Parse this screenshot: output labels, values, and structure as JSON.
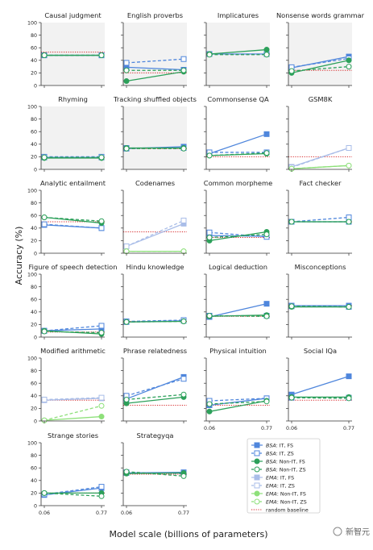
{
  "figure": {
    "ylabel": "Accuracy (%)",
    "xlabel": "Model scale (billions of parameters)",
    "watermark": "新智元"
  },
  "chart_data": {
    "type": "line",
    "x": [
      0.06,
      0.77
    ],
    "x_ticks": [
      "0.06",
      "0.77"
    ],
    "ylim": [
      0,
      100
    ],
    "y_ticks": [
      "0",
      "20",
      "40",
      "60",
      "80",
      "100"
    ],
    "grid": false,
    "series_styles": [
      {
        "key": "bsa_it_fs",
        "label": "BSA: IT, FS",
        "model": "BSA",
        "desc": ": IT, FS",
        "color": "#4f86dc",
        "marker": "square",
        "filled": true,
        "dashed": false
      },
      {
        "key": "bsa_it_zs",
        "label": "BSA: IT, ZS",
        "model": "BSA",
        "desc": ": IT, ZS",
        "color": "#4f86dc",
        "marker": "square",
        "filled": false,
        "dashed": true
      },
      {
        "key": "bsa_nonit_fs",
        "label": "BSA: Non-IT, FS",
        "model": "BSA",
        "desc": ": Non-IT, FS",
        "color": "#2ca05a",
        "marker": "circle",
        "filled": true,
        "dashed": false
      },
      {
        "key": "bsa_nonit_zs",
        "label": "BSA: Non-IT, ZS",
        "model": "BSA",
        "desc": ": Non-IT, ZS",
        "color": "#2ca05a",
        "marker": "circle",
        "filled": false,
        "dashed": true
      },
      {
        "key": "ema_it_fs",
        "label": "EMA: IT, FS",
        "model": "EMA",
        "desc": ": IT, FS",
        "color": "#a9bde8",
        "marker": "square",
        "filled": true,
        "dashed": false
      },
      {
        "key": "ema_it_zs",
        "label": "EMA: IT, ZS",
        "model": "EMA",
        "desc": ": IT, ZS",
        "color": "#a9bde8",
        "marker": "square",
        "filled": false,
        "dashed": true
      },
      {
        "key": "ema_nonit_fs",
        "label": "EMA: Non-IT, FS",
        "model": "EMA",
        "desc": ": Non-IT, FS",
        "color": "#8ee07a",
        "marker": "circle",
        "filled": true,
        "dashed": false
      },
      {
        "key": "ema_nonit_zs",
        "label": "EMA: Non-IT, ZS",
        "model": "EMA",
        "desc": ": Non-IT, ZS",
        "color": "#8ee07a",
        "marker": "circle",
        "filled": false,
        "dashed": true
      }
    ],
    "baseline": {
      "label": "random baseline",
      "color": "#d62728"
    },
    "panels": [
      {
        "title": "Causal judgment",
        "shaded": true,
        "baseline": 53,
        "series": {
          "bsa_it_fs": [
            48,
            48
          ],
          "bsa_it_zs": [
            48,
            48
          ],
          "bsa_nonit_fs": [
            48,
            48
          ],
          "bsa_nonit_zs": [
            48,
            48
          ]
        }
      },
      {
        "title": "English proverbs",
        "shaded": true,
        "baseline": 20,
        "series": {
          "bsa_it_fs": [
            29,
            25
          ],
          "bsa_it_zs": [
            36,
            42
          ],
          "bsa_nonit_fs": [
            7,
            22
          ],
          "bsa_nonit_zs": [
            24,
            24
          ]
        }
      },
      {
        "title": "Implicatures",
        "shaded": true,
        "baseline": 50,
        "series": {
          "bsa_it_fs": [
            50,
            50
          ],
          "bsa_it_zs": [
            50,
            50
          ],
          "bsa_nonit_fs": [
            50,
            57
          ],
          "bsa_nonit_zs": [
            49,
            49
          ]
        }
      },
      {
        "title": "Nonsense words grammar",
        "shaded": true,
        "baseline": 24,
        "series": {
          "bsa_it_fs": [
            28,
            46
          ],
          "bsa_it_zs": [
            29,
            43
          ],
          "bsa_nonit_fs": [
            20,
            40
          ],
          "bsa_nonit_zs": [
            23,
            30
          ]
        }
      },
      {
        "title": "Rhyming",
        "shaded": true,
        "baseline": 19,
        "series": {
          "bsa_it_fs": [
            19,
            19
          ],
          "bsa_it_zs": [
            20,
            20
          ],
          "bsa_nonit_fs": [
            18,
            18
          ],
          "bsa_nonit_zs": [
            19,
            19
          ]
        }
      },
      {
        "title": "Tracking shuffled objects",
        "shaded": true,
        "baseline": 33,
        "series": {
          "bsa_it_fs": [
            33,
            36
          ],
          "bsa_it_zs": [
            34,
            34
          ],
          "bsa_nonit_fs": [
            34,
            34
          ],
          "bsa_nonit_zs": [
            33,
            33
          ]
        }
      },
      {
        "title": "Commonsense QA",
        "shaded": false,
        "baseline": 20,
        "series": {
          "bsa_it_fs": [
            25,
            56
          ],
          "bsa_it_zs": [
            27,
            27
          ],
          "bsa_nonit_fs": [
            22,
            25
          ],
          "bsa_nonit_zs": [
            22,
            26
          ]
        }
      },
      {
        "title": "GSM8K",
        "shaded": false,
        "baseline": 20,
        "series": {
          "ema_it_fs": [
            4,
            34
          ],
          "ema_it_zs": [
            3,
            34
          ],
          "ema_nonit_fs": [
            1,
            6
          ],
          "ema_nonit_zs": [
            1,
            6
          ]
        }
      },
      {
        "title": "Analytic entailment",
        "shaded": false,
        "baseline": 50,
        "series": {
          "bsa_it_fs": [
            45,
            40
          ],
          "bsa_it_zs": [
            46,
            40
          ],
          "bsa_nonit_fs": [
            57,
            48
          ],
          "bsa_nonit_zs": [
            57,
            51
          ]
        }
      },
      {
        "title": "Codenames",
        "shaded": false,
        "baseline": 34,
        "series": {
          "ema_it_fs": [
            11,
            47
          ],
          "ema_it_zs": [
            11,
            52
          ],
          "ema_nonit_fs": [
            3,
            3
          ],
          "ema_nonit_zs": [
            3,
            3
          ]
        }
      },
      {
        "title": "Common morpheme",
        "shaded": false,
        "baseline": 25,
        "series": {
          "bsa_it_fs": [
            28,
            27
          ],
          "bsa_it_zs": [
            33,
            26
          ],
          "bsa_nonit_fs": [
            20,
            34
          ],
          "bsa_nonit_zs": [
            25,
            30
          ]
        }
      },
      {
        "title": "Fact checker",
        "shaded": false,
        "baseline": 50,
        "series": {
          "bsa_it_fs": [
            50,
            50
          ],
          "bsa_it_zs": [
            50,
            57
          ],
          "bsa_nonit_fs": [
            50,
            50
          ],
          "bsa_nonit_zs": [
            50,
            50
          ]
        }
      },
      {
        "title": "Figure of speech detection",
        "shaded": false,
        "baseline": 8,
        "series": {
          "bsa_it_fs": [
            10,
            13
          ],
          "bsa_it_zs": [
            10,
            18
          ],
          "bsa_nonit_fs": [
            10,
            5
          ],
          "bsa_nonit_zs": [
            9,
            7
          ]
        }
      },
      {
        "title": "Hindu knowledge",
        "shaded": false,
        "baseline": 25,
        "series": {
          "bsa_it_fs": [
            24,
            26
          ],
          "bsa_it_zs": [
            25,
            27
          ],
          "bsa_nonit_fs": [
            24,
            25
          ],
          "bsa_nonit_zs": [
            24,
            25
          ]
        }
      },
      {
        "title": "Logical deduction",
        "shaded": false,
        "baseline": 33,
        "series": {
          "bsa_it_fs": [
            32,
            53
          ],
          "bsa_it_zs": [
            34,
            34
          ],
          "bsa_nonit_fs": [
            33,
            35
          ],
          "bsa_nonit_zs": [
            34,
            33
          ]
        }
      },
      {
        "title": "Misconceptions",
        "shaded": false,
        "baseline": 50,
        "series": {
          "bsa_it_fs": [
            50,
            50
          ],
          "bsa_it_zs": [
            49,
            48
          ],
          "bsa_nonit_fs": [
            48,
            48
          ],
          "bsa_nonit_zs": [
            49,
            48
          ]
        }
      },
      {
        "title": "Modified arithmetic",
        "shaded": false,
        "baseline": 33,
        "series": {
          "ema_it_fs": [
            33,
            36
          ],
          "ema_it_zs": [
            34,
            37
          ],
          "ema_nonit_fs": [
            1,
            7
          ],
          "ema_nonit_zs": [
            1,
            24
          ]
        }
      },
      {
        "title": "Phrase relatedness",
        "shaded": false,
        "baseline": 25,
        "series": {
          "bsa_it_fs": [
            35,
            70
          ],
          "bsa_it_zs": [
            40,
            67
          ],
          "bsa_nonit_fs": [
            28,
            38
          ],
          "bsa_nonit_zs": [
            34,
            42
          ]
        }
      },
      {
        "title": "Physical intuition",
        "shaded": false,
        "baseline": 25,
        "series": {
          "bsa_it_fs": [
            25,
            36
          ],
          "bsa_it_zs": [
            32,
            36
          ],
          "bsa_nonit_fs": [
            15,
            32
          ],
          "bsa_nonit_zs": [
            27,
            31
          ]
        }
      },
      {
        "title": "Social IQa",
        "shaded": false,
        "baseline": 33,
        "series": {
          "bsa_it_fs": [
            42,
            71
          ],
          "bsa_it_zs": [
            37,
            37
          ],
          "bsa_nonit_fs": [
            38,
            38
          ],
          "bsa_nonit_zs": [
            37,
            36
          ]
        }
      },
      {
        "title": "Strange stories",
        "shaded": false,
        "baseline": 20,
        "series": {
          "bsa_it_fs": [
            17,
            28
          ],
          "bsa_it_zs": [
            18,
            30
          ],
          "bsa_nonit_fs": [
            20,
            20
          ],
          "bsa_nonit_zs": [
            20,
            15
          ]
        }
      },
      {
        "title": "Strategyqa",
        "shaded": false,
        "baseline": 50,
        "series": {
          "bsa_it_fs": [
            52,
            53
          ],
          "bsa_it_zs": [
            53,
            51
          ],
          "bsa_nonit_fs": [
            51,
            52
          ],
          "bsa_nonit_zs": [
            54,
            47
          ]
        }
      }
    ]
  }
}
